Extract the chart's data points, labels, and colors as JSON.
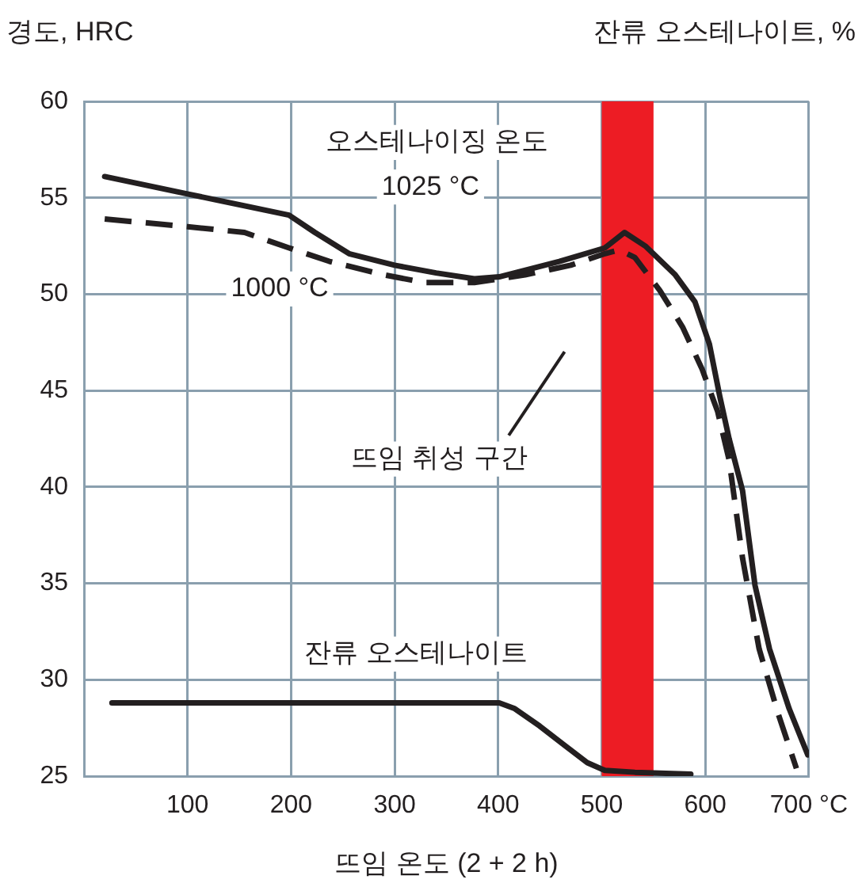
{
  "chart_data": {
    "type": "line",
    "ylabel": "경도, HRC",
    "y2label": "잔류 오스테나이트, %",
    "xlabel": "뜨임 온도 (2 + 2 h)",
    "annotations": [
      "오스테나이징 온도"
    ],
    "xlim": [
      0,
      700
    ],
    "xticks": [
      100,
      200,
      300,
      400,
      500,
      600,
      {
        "value": 700,
        "label": "700 °C"
      }
    ],
    "ylim": [
      25,
      60
    ],
    "yticks": [
      25,
      30,
      35,
      40,
      45,
      50,
      55,
      60
    ],
    "grid": true,
    "legend": false,
    "marker": "none",
    "bands": [
      {
        "axis": "x",
        "from": 500,
        "to": 550,
        "label": "뜨임 취성 구간",
        "color": "#ed1c24"
      }
    ],
    "series": [
      {
        "name": "1025 °C",
        "color": "#231f20",
        "line_style": "solid",
        "x": [
          20,
          100,
          198,
          223,
          256,
          300,
          340,
          377,
          401,
          459,
          503,
          522,
          542,
          571,
          590,
          604,
          614,
          623,
          636,
          648,
          662,
          681,
          699
        ],
        "values": [
          56.1,
          55.2,
          54.1,
          53.2,
          52.1,
          51.5,
          51.1,
          50.8,
          50.9,
          51.7,
          52.4,
          53.2,
          52.5,
          51.0,
          49.6,
          47.4,
          44.7,
          42.5,
          39.8,
          34.9,
          31.6,
          28.5,
          26.1
        ]
      },
      {
        "name": "1000 °C",
        "color": "#231f20",
        "line_style": "dashed",
        "x": [
          20,
          100,
          155,
          198,
          237,
          290,
          329,
          377,
          426,
          470,
          503,
          517,
          532,
          556,
          578,
          597,
          612,
          623,
          636,
          652,
          670,
          688
        ],
        "values": [
          53.9,
          53.5,
          53.2,
          52.4,
          51.7,
          51.0,
          50.6,
          50.6,
          51.0,
          51.5,
          52.1,
          52.3,
          51.9,
          50.2,
          48.3,
          46.1,
          43.9,
          41.4,
          36.3,
          31.6,
          28.3,
          25.4
        ]
      },
      {
        "name": "잔류 오스테나이트",
        "color": "#231f20",
        "line_style": "solid",
        "x": [
          27,
          401,
          416,
          440,
          464,
          486,
          503,
          532,
          586
        ],
        "values": [
          28.8,
          28.8,
          28.5,
          27.6,
          26.6,
          25.7,
          25.3,
          25.2,
          25.1
        ]
      }
    ]
  }
}
